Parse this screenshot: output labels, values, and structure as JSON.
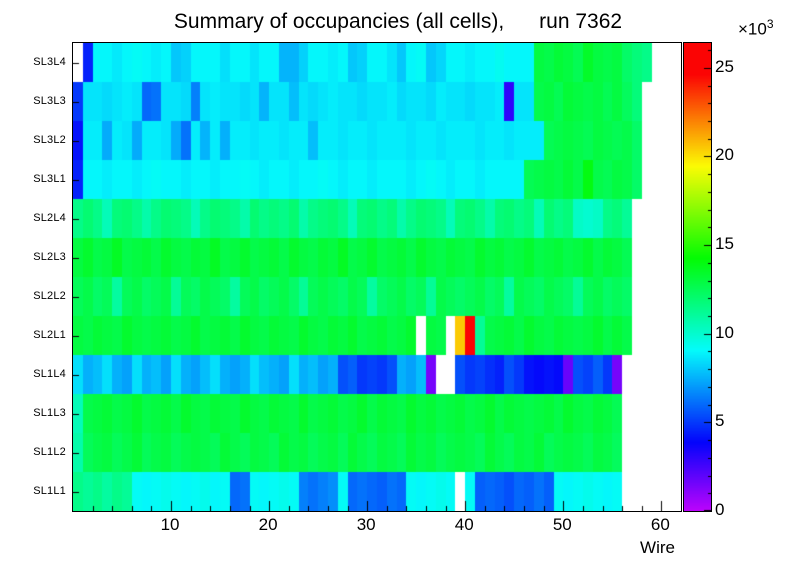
{
  "chart_data": {
    "type": "heatmap",
    "title": "Summary of occupancies (all cells),      run 7362",
    "xlabel": "Wire",
    "row_order": "top-to-bottom",
    "x_range": [
      0,
      62
    ],
    "x_major_ticks": [
      10,
      20,
      30,
      40,
      50,
      60
    ],
    "x_minor_tick_step": 2,
    "z_range": [
      0,
      26.4
    ],
    "values_unit": "1e3",
    "z_exponent": {
      "prefix": "×10",
      "sup": "3"
    },
    "colorbar_ticks": [
      0,
      5,
      10,
      15,
      20,
      25
    ],
    "palette": "rainbow",
    "legend_position": "right-colorbar",
    "grid": false,
    "rows": [
      {
        "label": "SL3L4",
        "values": [
          0,
          4.5,
          9,
          9,
          8.7,
          9,
          9.2,
          9,
          8.8,
          9,
          8,
          8.2,
          9,
          9,
          9,
          8.5,
          9,
          9,
          8.6,
          9,
          9,
          7.6,
          7.6,
          8.2,
          9,
          9,
          8.8,
          9,
          8,
          8.2,
          9,
          9,
          8.6,
          8,
          9,
          9.2,
          8,
          8.3,
          9,
          9,
          8.8,
          9,
          9,
          9.3,
          9,
          9,
          9,
          13,
          12.8,
          13.2,
          13,
          12.6,
          13.5,
          13,
          12.8,
          13,
          12.2,
          11.8,
          11.5,
          0,
          0,
          0
        ]
      },
      {
        "label": "SL3L3",
        "values": [
          5,
          8.6,
          8.6,
          8.4,
          8.6,
          8.8,
          8.6,
          6,
          6.2,
          8.6,
          8.6,
          8.4,
          6.5,
          8.6,
          8.8,
          8.6,
          8.6,
          8.4,
          8.6,
          7.6,
          8.6,
          8.6,
          7.8,
          8.6,
          8.4,
          8.6,
          8.8,
          8.6,
          8.6,
          8.4,
          8.6,
          8.6,
          8.8,
          8.4,
          8.6,
          8.6,
          8.4,
          8.8,
          8.6,
          8.6,
          8.4,
          8.6,
          8.6,
          8.8,
          3,
          8.6,
          8.6,
          12.8,
          13,
          12.6,
          13.2,
          13,
          12.8,
          13,
          12.6,
          13,
          12.4,
          11.8,
          0,
          0,
          0,
          0
        ]
      },
      {
        "label": "SL3L2",
        "values": [
          4.2,
          8.8,
          8.8,
          7.4,
          8.8,
          8.6,
          7.4,
          8.8,
          8.8,
          8.6,
          7.4,
          6.2,
          8.8,
          7.6,
          8.8,
          7.5,
          8.8,
          8.8,
          8.6,
          8.8,
          8.8,
          8.6,
          8.8,
          8.8,
          7.8,
          8.8,
          8.8,
          8.6,
          8.8,
          8.8,
          8.6,
          8.8,
          8.8,
          8.8,
          8.6,
          8.8,
          8.8,
          8.6,
          8.8,
          8.8,
          8.8,
          8.6,
          8.8,
          8.8,
          8.6,
          8.8,
          8.8,
          8.8,
          12.6,
          12.8,
          13,
          12.8,
          12.6,
          13,
          12.8,
          12.6,
          12.8,
          12.2,
          0,
          0,
          0,
          0
        ]
      },
      {
        "label": "SL3L1",
        "values": [
          4.5,
          9,
          9,
          8.8,
          9,
          9,
          8.8,
          9,
          9.2,
          9,
          9,
          8.8,
          9,
          9,
          8.8,
          9,
          9,
          9.2,
          9,
          8.8,
          9,
          9,
          8.8,
          9,
          9,
          9.2,
          9,
          8.8,
          9,
          9,
          8.8,
          9,
          9,
          9,
          8.8,
          9,
          9.2,
          9,
          8.8,
          9,
          9,
          8.8,
          9,
          9,
          9,
          9,
          12.6,
          12.8,
          13,
          12.8,
          13.2,
          12.8,
          14,
          12.8,
          12.6,
          13,
          12.8,
          12.2,
          0,
          0,
          0,
          0
        ]
      },
      {
        "label": "SL2L4",
        "values": [
          11.5,
          12,
          11.5,
          10.5,
          11.8,
          12,
          11.5,
          10.8,
          11.5,
          12,
          11.8,
          11.5,
          10.5,
          11.5,
          12,
          11.8,
          11.5,
          10.8,
          12,
          11.5,
          11.8,
          11.5,
          12,
          10.8,
          11.5,
          11.8,
          12,
          11.5,
          10.5,
          11.8,
          12,
          11.5,
          11.8,
          10.8,
          11.5,
          12,
          11.8,
          11.5,
          10.5,
          11.8,
          12,
          11.5,
          10.8,
          11.8,
          12,
          11.5,
          11.8,
          10.5,
          12,
          11.5,
          11.8,
          10.2,
          10,
          10.2,
          11.5,
          11.8,
          11.2,
          0,
          0,
          0,
          0,
          0
        ]
      },
      {
        "label": "SL2L3",
        "values": [
          13,
          13.4,
          12.8,
          13,
          13.6,
          12.8,
          13,
          13.2,
          12.8,
          13.4,
          13,
          12.8,
          13.2,
          13,
          13.6,
          12.8,
          13,
          13.4,
          12.8,
          13,
          13.2,
          12.8,
          13.4,
          13,
          12.8,
          13.2,
          13,
          13.6,
          12.8,
          13,
          13.4,
          12.8,
          13,
          13.2,
          12.8,
          13.4,
          13,
          12.8,
          13.2,
          13,
          12.8,
          13.4,
          13,
          13.2,
          12.8,
          13,
          13.4,
          12.8,
          13,
          13.2,
          12.8,
          13,
          13.4,
          12.8,
          13.2,
          13,
          12.6,
          0,
          0,
          0,
          0,
          0
        ]
      },
      {
        "label": "SL2L2",
        "values": [
          12.5,
          12.8,
          12.2,
          12.5,
          11,
          12.5,
          12.8,
          12.2,
          12.5,
          12.8,
          11.2,
          12.5,
          12.2,
          12.8,
          12.5,
          12.2,
          11,
          12.5,
          12.8,
          12.2,
          12.5,
          12.8,
          12.2,
          11.2,
          12.5,
          12.8,
          12.5,
          12.2,
          12.8,
          12.5,
          11,
          12.2,
          12.5,
          12.8,
          12.2,
          12.5,
          11.2,
          12.8,
          12.5,
          12.2,
          12.5,
          12.8,
          12.2,
          12.5,
          11,
          12.8,
          12.5,
          12.2,
          12.8,
          12.5,
          12.2,
          11.2,
          12.5,
          12.8,
          12.2,
          12.5,
          12.2,
          0,
          0,
          0,
          0,
          0
        ]
      },
      {
        "label": "SL2L1",
        "values": [
          13,
          12.8,
          13.2,
          13,
          12.8,
          13.4,
          13,
          12.8,
          13,
          13.2,
          12.8,
          13,
          13.4,
          12.8,
          13,
          13.2,
          12.8,
          13.4,
          13,
          12.8,
          13.2,
          13,
          12.8,
          13.4,
          13,
          12.8,
          13.2,
          13,
          13.4,
          12.8,
          13,
          13.2,
          12.8,
          13,
          13.4,
          0,
          13,
          12.8,
          0,
          20.5,
          25.8,
          11.2,
          12.8,
          13,
          13.2,
          12.8,
          13.4,
          13,
          12.8,
          13.2,
          13,
          12.8,
          13,
          13.4,
          12.8,
          13.2,
          12.8,
          0,
          0,
          0,
          0,
          0
        ]
      },
      {
        "label": "SL1L4",
        "values": [
          8.5,
          7.5,
          7.8,
          8.5,
          7.5,
          7.2,
          8.5,
          7.5,
          7.8,
          7.2,
          8.5,
          7.5,
          7.2,
          7.8,
          8.5,
          7.5,
          7.2,
          7.5,
          8.5,
          7.8,
          7.5,
          7.2,
          8.5,
          7.5,
          7.8,
          7.2,
          7.5,
          5.5,
          5.8,
          5,
          5.2,
          5,
          5.5,
          7.5,
          7.2,
          7.8,
          1.5,
          0,
          0,
          5.5,
          5,
          5.2,
          4.8,
          4.5,
          5.5,
          5,
          4.2,
          4,
          4.2,
          4,
          1.8,
          5.5,
          5.2,
          5.8,
          5,
          1.5,
          0,
          0,
          0,
          0,
          0,
          0
        ]
      },
      {
        "label": "SL1L3",
        "values": [
          10.5,
          12.8,
          13,
          13.2,
          12.8,
          13,
          13.4,
          12.8,
          13,
          13.2,
          12.8,
          13.4,
          13,
          12.8,
          13.2,
          13,
          12.8,
          13.4,
          13,
          12.8,
          13.2,
          13,
          12.8,
          13.4,
          12.8,
          13,
          13.2,
          12.8,
          13,
          13.4,
          12.8,
          13.2,
          13,
          12.8,
          13.4,
          13,
          13.2,
          12.8,
          13,
          13.2,
          12.8,
          13,
          13.4,
          12.8,
          13.2,
          13,
          12.8,
          13,
          13.2,
          12.8,
          13.4,
          13,
          12.8,
          13.2,
          13,
          12.6,
          0,
          0,
          0,
          0,
          0,
          0
        ]
      },
      {
        "label": "SL1L2",
        "values": [
          10.8,
          12.5,
          12.8,
          13,
          12.5,
          12.8,
          13.2,
          12.5,
          12.8,
          13,
          12.5,
          12.8,
          13,
          12.8,
          12.5,
          13.2,
          12.8,
          12.5,
          13,
          12.8,
          12.5,
          13.2,
          12.8,
          13,
          12.5,
          12.8,
          13,
          12.5,
          13.2,
          12.8,
          12.5,
          13,
          12.8,
          12.5,
          13.2,
          12.8,
          13,
          12.5,
          12.8,
          13,
          12.8,
          12.5,
          13.2,
          12.8,
          12.5,
          13,
          12.8,
          13.2,
          12.5,
          12.8,
          13,
          12.8,
          12.5,
          13,
          12.8,
          12.4,
          0,
          0,
          0,
          0,
          0,
          0
        ]
      },
      {
        "label": "SL1L1",
        "values": [
          11.5,
          11.2,
          11.5,
          11,
          11.5,
          11.2,
          9.2,
          9,
          9.2,
          9.4,
          9.2,
          9,
          9.2,
          9.4,
          9,
          9.2,
          6,
          6.2,
          9.2,
          9,
          9.2,
          9.4,
          9.2,
          6.5,
          6.2,
          6.5,
          6.8,
          9.2,
          6,
          6.2,
          6,
          5.8,
          6.2,
          6,
          9.2,
          9,
          9.2,
          9.4,
          9.2,
          0,
          9.2,
          5.8,
          6,
          5.8,
          5.5,
          6,
          5.8,
          6.2,
          5.8,
          9.2,
          9,
          9.2,
          9.4,
          9.2,
          9,
          9.2,
          0,
          0,
          0,
          0,
          0,
          0
        ]
      }
    ]
  }
}
